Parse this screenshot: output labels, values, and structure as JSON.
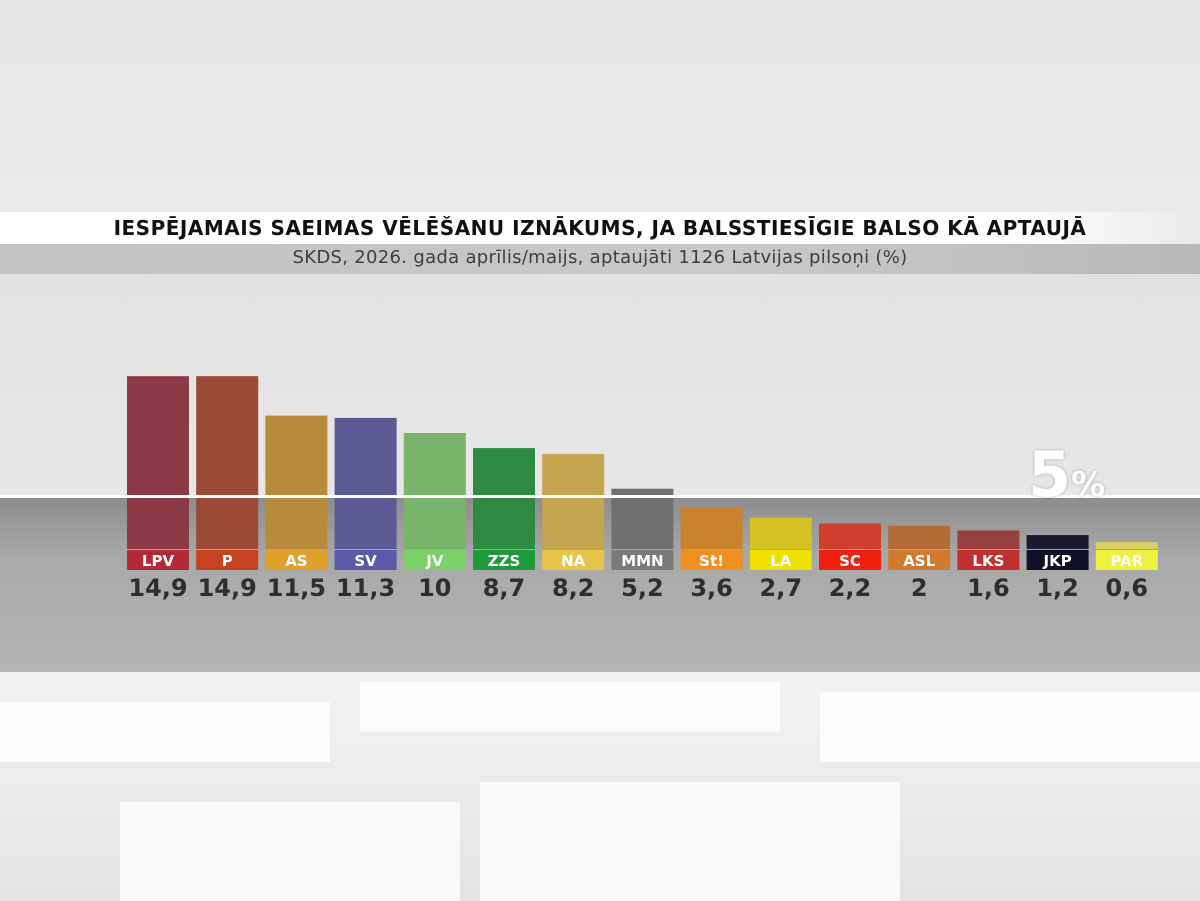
{
  "title": "IESPĒJAMAIS SAEIMAS VĒLĒŠANU IZNĀKUMS, JA BALSSTIESĪGIE BALSO KĀ APTAUJĀ",
  "subtitle": "SKDS, 2026. gada aprīlis/maijs, aptaujāti 1126 Latvijas pilsoņi (%)",
  "threshold": {
    "value": 5,
    "number": "5",
    "unit": "%"
  },
  "chart_data": {
    "type": "bar",
    "title": "IESPĒJAMAIS SAEIMAS VĒLĒŠANU IZNĀKUMS, JA BALSSTIESĪGIE BALSO KĀ APTAUJĀ",
    "subtitle": "SKDS, 2026. gada aprīlis/maijs, aptaujāti 1126 Latvijas pilsoņi (%)",
    "categories": [
      "LPV",
      "P",
      "AS",
      "SV",
      "JV",
      "ZZS",
      "NA",
      "MMN",
      "St!",
      "LA",
      "SC",
      "ASL",
      "LKS",
      "JKP",
      "PAR"
    ],
    "values": [
      14.9,
      14.9,
      11.5,
      11.3,
      10,
      8.7,
      8.2,
      5.2,
      3.6,
      2.7,
      2.2,
      2,
      1.6,
      1.2,
      0.6
    ],
    "value_labels": [
      "14,9",
      "14,9",
      "11,5",
      "11,3",
      "10",
      "8,7",
      "8,2",
      "5,2",
      "3,6",
      "2,7",
      "2,2",
      "2",
      "1,6",
      "1,2",
      "0,6"
    ],
    "threshold": 5,
    "ylim": [
      0,
      15
    ],
    "grid": false,
    "bar_colors": [
      "#8c3a45",
      "#9a4a35",
      "#b88a3c",
      "#5c5a92",
      "#78b46a",
      "#2e8a42",
      "#c4a650",
      "#707070",
      "#c9822e",
      "#d4c224",
      "#d0402f",
      "#b46a34",
      "#984040",
      "#1b1b30",
      "#d8d060"
    ],
    "label_colors": [
      "#b02a37",
      "#c4421f",
      "#e0a02c",
      "#5a5aa8",
      "#7cd06a",
      "#1e9a3c",
      "#e8c44a",
      "#7a7a7a",
      "#f09020",
      "#f0e000",
      "#f02010",
      "#d07a30",
      "#c03030",
      "#101028",
      "#f0f040"
    ]
  }
}
